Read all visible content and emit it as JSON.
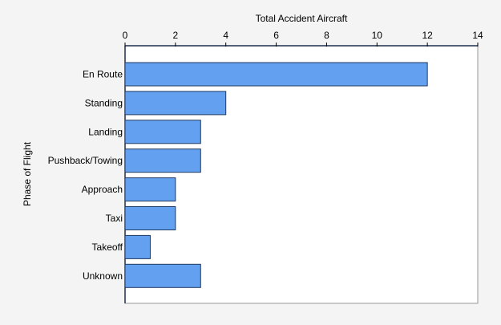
{
  "chart_data": {
    "type": "bar",
    "orientation": "horizontal",
    "title": "",
    "xlabel": "Total Accident Aircraft",
    "ylabel": "Phase of Flight",
    "xlim": [
      0,
      14
    ],
    "x_ticks": [
      0,
      2,
      4,
      6,
      8,
      10,
      12,
      14
    ],
    "x_axis_position": "top",
    "grid": false,
    "categories": [
      "En Route",
      "Standing",
      "Landing",
      "Pushback/Towing",
      "Approach",
      "Taxi",
      "Takeoff",
      "Unknown"
    ],
    "values": [
      12,
      4,
      3,
      3,
      2,
      2,
      1,
      3
    ],
    "bar_color": "#64a0f0",
    "bar_edge_color": "#1f3a5f"
  }
}
